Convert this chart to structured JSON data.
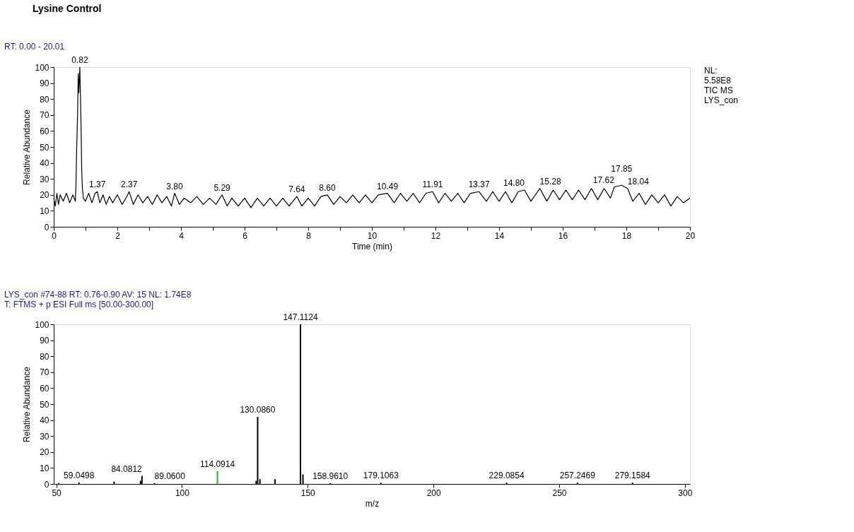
{
  "chart_data": [
    {
      "type": "line",
      "title": "Lysine Control",
      "xlabel": "Time (min)",
      "ylabel": "Relative Abundance",
      "x": [
        0,
        0.05,
        0.1,
        0.15,
        0.2,
        0.3,
        0.4,
        0.5,
        0.6,
        0.68,
        0.7,
        0.72,
        0.75,
        0.77,
        0.79,
        0.82,
        0.84,
        0.86,
        0.88,
        0.9,
        0.93,
        1.0,
        1.1,
        1.2,
        1.3,
        1.37,
        1.45,
        1.55,
        1.65,
        1.75,
        1.85,
        2.0,
        2.15,
        2.3,
        2.37,
        2.5,
        2.65,
        2.8,
        2.95,
        3.1,
        3.25,
        3.4,
        3.55,
        3.7,
        3.8,
        3.95,
        4.1,
        4.3,
        4.5,
        4.7,
        4.9,
        5.1,
        5.29,
        5.45,
        5.6,
        5.8,
        6.0,
        6.2,
        6.4,
        6.6,
        6.8,
        7.0,
        7.2,
        7.4,
        7.64,
        7.8,
        8.0,
        8.2,
        8.4,
        8.6,
        8.8,
        9.0,
        9.2,
        9.4,
        9.6,
        9.8,
        10.0,
        10.2,
        10.49,
        10.7,
        10.9,
        11.1,
        11.3,
        11.5,
        11.7,
        11.91,
        12.1,
        12.3,
        12.5,
        12.7,
        12.9,
        13.1,
        13.37,
        13.6,
        13.8,
        14.0,
        14.2,
        14.4,
        14.6,
        14.8,
        15.0,
        15.28,
        15.5,
        15.7,
        15.9,
        16.1,
        16.3,
        16.5,
        16.7,
        16.9,
        17.1,
        17.3,
        17.5,
        17.62,
        17.85,
        18.04,
        18.2,
        18.4,
        18.6,
        18.8,
        19.0,
        19.2,
        19.4,
        19.6,
        19.8,
        20.0
      ],
      "series": [
        {
          "color": "#000000",
          "values": [
            18,
            13,
            21,
            14,
            20,
            16,
            21,
            15,
            20,
            16,
            27,
            48,
            70,
            96,
            84,
            100,
            82,
            62,
            35,
            25,
            18,
            16,
            21,
            15,
            21,
            22,
            15,
            20,
            14,
            19,
            15,
            20,
            14,
            19,
            22,
            14,
            20,
            15,
            19,
            14,
            20,
            15,
            19,
            13,
            21,
            14,
            18,
            15,
            19,
            14,
            18,
            14,
            20,
            13,
            18,
            13,
            18,
            12,
            18,
            13,
            18,
            13,
            18,
            13,
            19,
            13,
            18,
            13,
            19,
            20,
            14,
            19,
            15,
            20,
            15,
            20,
            15,
            20,
            21,
            15,
            21,
            16,
            21,
            15,
            21,
            22,
            15,
            21,
            16,
            21,
            15,
            21,
            22,
            16,
            22,
            16,
            22,
            15,
            22,
            23,
            16,
            24,
            16,
            23,
            17,
            23,
            17,
            23,
            17,
            24,
            17,
            24,
            18,
            25,
            26,
            24,
            16,
            21,
            14,
            20,
            15,
            20,
            13,
            19,
            15,
            18
          ]
        }
      ],
      "xlim": [
        0,
        20
      ],
      "ylim": [
        0,
        100
      ],
      "xticks": [
        0,
        {
          "value": 1,
          "label": null
        },
        2,
        {
          "value": 3,
          "label": null
        },
        4,
        {
          "value": 5,
          "label": null
        },
        6,
        {
          "value": 7,
          "label": null
        },
        8,
        {
          "value": 9,
          "label": null
        },
        10,
        {
          "value": 11,
          "label": null
        },
        12,
        {
          "value": 13,
          "label": null
        },
        14,
        {
          "value": 15,
          "label": null
        },
        16,
        {
          "value": 17,
          "label": null
        },
        18,
        {
          "value": 19,
          "label": null
        },
        20
      ],
      "yticks": [
        0,
        10,
        20,
        30,
        40,
        50,
        60,
        70,
        80,
        90,
        100
      ],
      "grid": false,
      "annotations": [
        "RT: 0.00 - 20.01",
        "NL:\n5.58E8\nTIC  MS\nLYS_con",
        {
          "text": "0.82",
          "x": 0.82,
          "y": 100
        },
        {
          "text": "1.37",
          "x": 1.37,
          "y": 22
        },
        {
          "text": "2.37",
          "x": 2.37,
          "y": 22
        },
        {
          "text": "3.80",
          "x": 3.8,
          "y": 21
        },
        {
          "text": "5.29",
          "x": 5.29,
          "y": 20
        },
        {
          "text": "7.64",
          "x": 7.64,
          "y": 19
        },
        {
          "text": "8.60",
          "x": 8.6,
          "y": 20
        },
        {
          "text": "10.49",
          "x": 10.49,
          "y": 21
        },
        {
          "text": "11.91",
          "x": 11.91,
          "y": 22
        },
        {
          "text": "13.37",
          "x": 13.37,
          "y": 22
        },
        {
          "text": "14.80",
          "x": 14.8,
          "y": 23
        },
        {
          "text": "15.28",
          "x": 15.28,
          "y": 24
        },
        {
          "text": "17.62",
          "x": 17.62,
          "y": 25
        },
        {
          "text": "17.85",
          "x": 17.85,
          "y": 26
        },
        {
          "text": "18.04",
          "x": 18.04,
          "y": 24
        }
      ]
    },
    {
      "type": "bar",
      "xlabel": "m/z",
      "ylabel": "Relative Abundance",
      "x": [
        51,
        59.0498,
        73,
        83.5,
        84.0812,
        89.06,
        114.0914,
        129.5,
        130.086,
        131,
        137,
        147.1124,
        148.1,
        158.961,
        179.1063,
        229.0854,
        257.2469,
        279.1584
      ],
      "values": [
        0.5,
        1,
        1.5,
        2,
        5,
        0.5,
        8,
        2,
        42,
        3,
        3,
        100,
        6,
        0.5,
        0.8,
        0.8,
        0.8,
        0.8
      ],
      "colors": [
        "#000000",
        "#000000",
        "#000000",
        "#000000",
        "#000000",
        "#000000",
        "#33aa33",
        "#000000",
        "#000000",
        "#000000",
        "#000000",
        "#000000",
        "#000000",
        "#000000",
        "#000000",
        "#000000",
        "#000000",
        "#000000"
      ],
      "xlim": [
        49,
        302
      ],
      "ylim": [
        0,
        100
      ],
      "xticks": [
        50,
        100,
        150,
        200,
        250,
        300
      ],
      "yticks": [
        0,
        10,
        20,
        30,
        40,
        50,
        60,
        70,
        80,
        90,
        100
      ],
      "grid": false,
      "annotations": [
        "LYS_con #74-88   RT: 0.76-0.90   AV: 15   NL: 1.74E8\nT: FTMS + p ESI Full ms [50.00-300.00]",
        {
          "text": "59.0498",
          "x": 59.0498,
          "y": 1
        },
        {
          "text": "84.0812",
          "x": 84.0812,
          "y": 5
        },
        {
          "text": "89.0600",
          "x": 89.06,
          "y": 0.5
        },
        {
          "text": "114.0914",
          "x": 114.0914,
          "y": 8
        },
        {
          "text": "130.0860",
          "x": 130.086,
          "y": 42
        },
        {
          "text": "147.1124",
          "x": 147.1124,
          "y": 100
        },
        {
          "text": "158.9610",
          "x": 158.961,
          "y": 0.5
        },
        {
          "text": "179.1063",
          "x": 179.1063,
          "y": 0.8
        },
        {
          "text": "229.0854",
          "x": 229.0854,
          "y": 0.8
        },
        {
          "text": "257.2469",
          "x": 257.2469,
          "y": 0.8
        },
        {
          "text": "279.1584",
          "x": 279.1584,
          "y": 0.8
        }
      ]
    }
  ]
}
